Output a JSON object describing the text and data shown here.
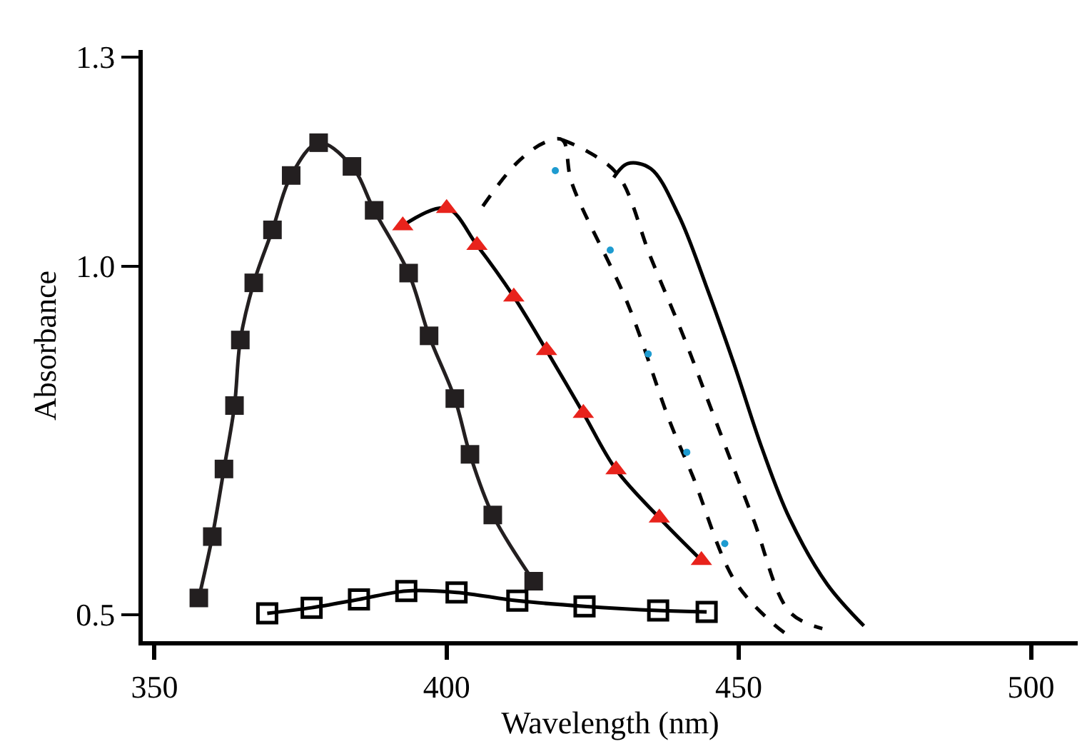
{
  "chart_data": {
    "type": "line",
    "xlabel": "Wavelength (nm)",
    "ylabel": "Absorbance",
    "xlim": [
      348,
      508
    ],
    "xticks": [
      350,
      400,
      450,
      500
    ],
    "ylim": [
      0.462,
      1.31
    ],
    "yticks": [
      0.5,
      {
        "value": 1,
        "label": "1.0"
      },
      1.3
    ],
    "series": [
      {
        "color": "#231f20",
        "marker": "square",
        "line_style": "solid",
        "x": [
          357.6,
          359.9,
          361.9,
          363.7,
          364.7,
          367.0,
          370.2,
          373.4,
          378.1,
          383.8,
          387.6,
          393.5,
          397.0,
          401.4,
          404.0,
          407.9,
          414.9
        ],
        "values": [
          0.524,
          0.612,
          0.709,
          0.8,
          0.894,
          0.976,
          1.052,
          1.13,
          1.177,
          1.143,
          1.08,
          0.99,
          0.9,
          0.81,
          0.73,
          0.643,
          0.548
        ]
      },
      {
        "color": "#000000",
        "marker": "square-open",
        "line_style": "solid",
        "x": [
          369.3,
          376.9,
          385.0,
          393.1,
          401.7,
          412.1,
          423.6,
          436.2,
          444.5
        ],
        "values": [
          0.502,
          0.51,
          0.522,
          0.534,
          0.532,
          0.52,
          0.512,
          0.506,
          0.504
        ]
      },
      {
        "color": "#000000",
        "marker": "none",
        "line_style": "solid",
        "x": [
          392.5,
          400.0,
          405.2,
          411.5,
          417.1,
          423.4,
          429.0,
          436.4,
          443.6
        ],
        "values": [
          1.058,
          1.083,
          1.03,
          0.956,
          0.879,
          0.789,
          0.708,
          0.639,
          0.578
        ]
      },
      {
        "type": "scatter",
        "color": "#e8231c",
        "marker": "triangle",
        "x": [
          392.5,
          400.0,
          405.2,
          411.5,
          417.1,
          423.4,
          429.0,
          436.4,
          443.6
        ],
        "values": [
          1.058,
          1.083,
          1.03,
          0.956,
          0.879,
          0.789,
          0.708,
          0.639,
          0.578
        ]
      },
      {
        "color": "#000000",
        "marker": "none",
        "line_style": "dashed",
        "x": [
          406.2,
          411.9,
          416.7,
          419.8,
          421.4,
          431.0,
          438.1,
          442.1,
          449.2,
          455.5,
          459.5
        ],
        "values": [
          1.086,
          1.147,
          1.177,
          1.181,
          1.12,
          0.946,
          0.779,
          0.699,
          0.55,
          0.49,
          0.464
        ]
      },
      {
        "type": "scatter",
        "color": "#1e9bd0",
        "marker": "circle",
        "x": [
          418.6,
          428.0,
          434.5,
          441.1,
          447.6
        ],
        "values": [
          1.137,
          1.023,
          0.874,
          0.733,
          0.602
        ]
      },
      {
        "color": "#000000",
        "marker": "none",
        "line_style": "dashed",
        "x": [
          419.8,
          424.0,
          429.4,
          434.9,
          440.5,
          446.0,
          452.4,
          458.7,
          464.3
        ],
        "values": [
          1.181,
          1.165,
          1.13,
          1.013,
          0.9,
          0.779,
          0.639,
          0.504,
          0.48
        ]
      },
      {
        "color": "#000000",
        "marker": "none",
        "line_style": "solid",
        "x": [
          428.6,
          431.0,
          434.9,
          439.7,
          444.4,
          449.2,
          454.0,
          458.7,
          465.1,
          471.4
        ],
        "values": [
          1.127,
          1.147,
          1.14,
          1.073,
          0.972,
          0.859,
          0.738,
          0.638,
          0.544,
          0.484
        ]
      }
    ]
  }
}
